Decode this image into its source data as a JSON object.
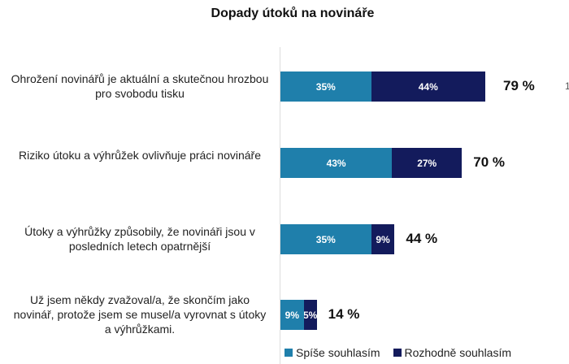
{
  "chart_data": {
    "type": "bar",
    "orientation": "horizontal",
    "stacked": true,
    "title": "Dopady útoků na novináře",
    "categories": [
      "Ohrožení novinářů je aktuální a skutečnou hrozbou pro svobodu tisku",
      "Riziko útoku a výhrůžek ovlivňuje práci novináře",
      "Útoky a výhrůžky způsobily, že novináři jsou v posledních letech opatrnější",
      "Už jsem někdy zvažoval/a, že skončím jako novinář, protože jsem se musel/a vyrovnat s útoky a výhrůžkami."
    ],
    "series": [
      {
        "name": "Spíše souhlasím",
        "values": [
          35,
          43,
          35,
          9
        ],
        "labels": [
          "35%",
          "43%",
          "35%",
          "9%"
        ],
        "color": "#1f7fab"
      },
      {
        "name": "Rozhodně souhlasím",
        "values": [
          44,
          27,
          9,
          5
        ],
        "labels": [
          "44%",
          "27%",
          "9%",
          "5%"
        ],
        "color": "#131b5c"
      }
    ],
    "totals": [
      "79 %",
      "70 %",
      "44 %",
      "14 %"
    ],
    "legend": "bottom-right",
    "grid": false
  },
  "edge_fragment": "1"
}
